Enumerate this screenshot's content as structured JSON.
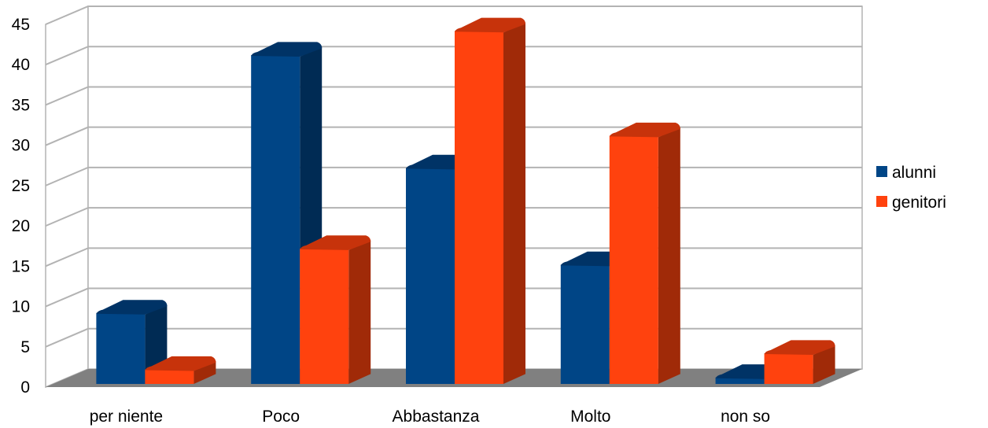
{
  "chart_data": {
    "type": "bar",
    "style": "3d-clustered-column",
    "categories": [
      "per niente",
      "Poco",
      "Abbastanza",
      "Molto",
      "non so"
    ],
    "series": [
      {
        "name": "alunni",
        "values": [
          9,
          41,
          27,
          15,
          1
        ],
        "color": "#004586",
        "side_color": "#002b54",
        "top_color": "#003366"
      },
      {
        "name": "genitori",
        "values": [
          2,
          17,
          44,
          31,
          4
        ],
        "color": "#ff420e",
        "side_color": "#a02a08",
        "top_color": "#c7330b"
      }
    ],
    "yticks": [
      "0",
      "5",
      "10",
      "15",
      "20",
      "25",
      "30",
      "35",
      "40",
      "45"
    ],
    "ylim": [
      0,
      45
    ],
    "grid": true,
    "floor_color": "#808080",
    "legend_position": "right"
  }
}
